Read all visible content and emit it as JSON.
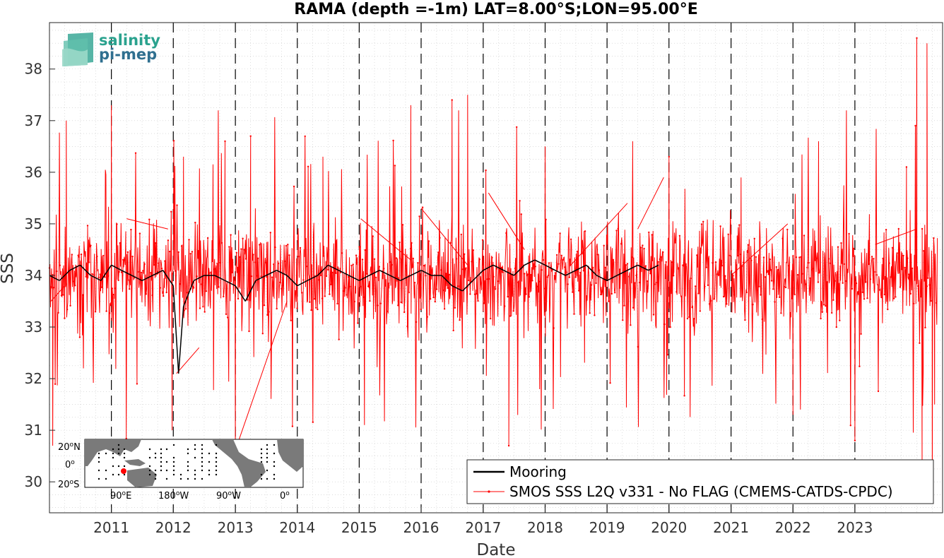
{
  "chart_data": {
    "type": "line",
    "title": "RAMA (depth =-1m) LAT=8.00°S;LON=95.00°E",
    "xlabel": "Date",
    "ylabel": "SSS",
    "xlim": [
      "2010-01-01",
      "2024-06-01"
    ],
    "ylim": [
      29.4,
      38.9
    ],
    "yticks": [
      30,
      31,
      32,
      33,
      34,
      35,
      36,
      37,
      38
    ],
    "xticks": [
      "2011",
      "2012",
      "2013",
      "2014",
      "2015",
      "2016",
      "2017",
      "2018",
      "2019",
      "2020",
      "2021",
      "2022",
      "2023"
    ],
    "year_markers": [
      "2011-01-01",
      "2012-01-01",
      "2013-01-01",
      "2014-01-01",
      "2015-01-01",
      "2016-01-01",
      "2017-01-01",
      "2018-01-01",
      "2019-01-01",
      "2020-01-01",
      "2021-01-01",
      "2022-01-01",
      "2023-01-01"
    ],
    "grid": true,
    "legend_placement": "bottom-right",
    "series": [
      {
        "name": "Mooring",
        "color": "#000000",
        "note_visible_segments": true,
        "values": [
          [
            "2010-01-01",
            34.0
          ],
          [
            "2010-03-01",
            33.9
          ],
          [
            "2010-05-01",
            34.1
          ],
          [
            "2010-07-01",
            34.2
          ],
          [
            "2010-09-01",
            34.0
          ],
          [
            "2010-11-01",
            33.9
          ],
          [
            "2011-01-01",
            34.2
          ],
          [
            "2011-03-01",
            34.1
          ],
          [
            "2011-05-01",
            34.0
          ],
          [
            "2011-07-01",
            33.9
          ],
          [
            "2011-09-01",
            34.0
          ],
          [
            "2011-11-01",
            34.1
          ],
          [
            "2012-01-01",
            33.8
          ],
          [
            "2012-02-01",
            32.1
          ],
          [
            "2012-03-01",
            33.4
          ],
          [
            "2012-05-01",
            33.9
          ],
          [
            "2012-07-01",
            34.0
          ],
          [
            "2012-09-01",
            34.0
          ],
          [
            "2012-11-01",
            33.9
          ],
          [
            "2013-01-01",
            33.8
          ],
          [
            "2013-03-01",
            33.5
          ],
          [
            "2013-05-01",
            33.9
          ],
          [
            "2013-07-01",
            34.0
          ],
          [
            "2013-09-01",
            34.1
          ],
          [
            "2013-11-01",
            34.0
          ],
          [
            "2014-01-01",
            33.8
          ],
          [
            "2014-03-01",
            33.9
          ],
          [
            "2014-05-01",
            34.0
          ],
          [
            "2014-07-01",
            34.2
          ],
          [
            "2014-09-01",
            34.1
          ],
          [
            "2014-11-01",
            34.0
          ],
          [
            "2015-01-01",
            33.9
          ],
          [
            "2015-03-01",
            34.0
          ],
          [
            "2015-05-01",
            34.1
          ],
          [
            "2015-07-01",
            34.0
          ],
          [
            "2015-09-01",
            33.9
          ],
          [
            "2015-11-01",
            34.0
          ],
          [
            "2016-01-01",
            34.1
          ],
          [
            "2016-03-01",
            34.0
          ],
          [
            "2016-05-01",
            34.0
          ],
          [
            "2016-07-01",
            33.8
          ],
          [
            "2016-09-01",
            33.7
          ],
          [
            "2016-11-01",
            33.9
          ],
          [
            "2017-01-01",
            34.1
          ],
          [
            "2017-03-01",
            34.2
          ],
          [
            "2017-05-01",
            34.1
          ],
          [
            "2017-07-01",
            34.0
          ],
          [
            "2017-09-01",
            34.2
          ],
          [
            "2017-11-01",
            34.3
          ],
          [
            "2018-01-01",
            34.2
          ],
          [
            "2018-03-01",
            34.1
          ],
          [
            "2018-05-01",
            34.0
          ],
          [
            "2018-07-01",
            34.1
          ],
          [
            "2018-09-01",
            34.2
          ],
          [
            "2018-11-01",
            34.0
          ],
          [
            "2019-01-01",
            33.9
          ],
          [
            "2019-03-01",
            34.0
          ],
          [
            "2019-05-01",
            34.1
          ],
          [
            "2019-07-01",
            34.2
          ],
          [
            "2019-09-01",
            34.1
          ],
          [
            "2019-11-01",
            34.2
          ]
        ]
      },
      {
        "name": "SMOS SSS L2Q v331 - No FLAG  (CMEMS-CATDS-CPDC)",
        "color": "#ff0000",
        "start": "2010-01-01",
        "end": "2024-05-01",
        "mean": 34.0,
        "spread": 0.9,
        "spikes": [
          [
            "2010-01-20",
            30.7
          ],
          [
            "2010-04-10",
            37.0
          ],
          [
            "2011-01-01",
            37.3
          ],
          [
            "2011-06-01",
            31.9
          ],
          [
            "2011-12-25",
            31.0
          ],
          [
            "2012-03-01",
            36.3
          ],
          [
            "2012-11-01",
            36.6
          ],
          [
            "2013-01-01",
            30.6
          ],
          [
            "2013-04-01",
            36.7
          ],
          [
            "2014-06-01",
            36.3
          ],
          [
            "2015-02-01",
            31.1
          ],
          [
            "2015-11-01",
            37.3
          ],
          [
            "2016-07-01",
            37.4
          ],
          [
            "2016-10-01",
            37.5
          ],
          [
            "2017-06-01",
            30.7
          ],
          [
            "2018-01-01",
            36.5
          ],
          [
            "2019-06-01",
            36.6
          ],
          [
            "2020-01-01",
            36.3
          ],
          [
            "2021-03-01",
            35.9
          ],
          [
            "2022-01-01",
            31.3
          ],
          [
            "2022-06-01",
            36.6
          ],
          [
            "2023-01-01",
            30.8
          ],
          [
            "2023-11-01",
            36.1
          ],
          [
            "2024-01-01",
            38.6
          ],
          [
            "2024-02-01",
            30.3
          ],
          [
            "2024-03-01",
            38.5
          ],
          [
            "2024-04-01",
            29.8
          ],
          [
            "2024-04-15",
            31.5
          ]
        ],
        "gap_links": [
          [
            [
              "2010-01-10",
              33.5
            ],
            [
              "2010-04-01",
              33.8
            ]
          ],
          [
            [
              "2011-04-01",
              35.1
            ],
            [
              "2011-12-01",
              34.9
            ]
          ],
          [
            [
              "2012-01-20",
              32.1
            ],
            [
              "2012-06-01",
              32.6
            ]
          ],
          [
            [
              "2013-01-10",
              30.7
            ],
            [
              "2013-11-01",
              33.5
            ]
          ],
          [
            [
              "2015-01-10",
              35.1
            ],
            [
              "2015-11-01",
              34.3
            ]
          ],
          [
            [
              "2016-01-01",
              35.3
            ],
            [
              "2016-10-01",
              34.2
            ]
          ],
          [
            [
              "2017-02-01",
              35.6
            ],
            [
              "2017-09-01",
              34.5
            ]
          ],
          [
            [
              "2018-06-01",
              34.2
            ],
            [
              "2019-05-01",
              35.4
            ]
          ],
          [
            [
              "2019-07-01",
              34.9
            ],
            [
              "2019-12-01",
              35.9
            ]
          ],
          [
            [
              "2021-01-01",
              34.0
            ],
            [
              "2021-12-01",
              35.0
            ]
          ],
          [
            [
              "2023-05-01",
              34.6
            ],
            [
              "2024-01-01",
              34.9
            ]
          ]
        ]
      }
    ]
  },
  "logo": {
    "line1": "salinity",
    "line2": "pi-mep"
  },
  "inset_map": {
    "lat_labels": [
      "20",
      "N",
      "0",
      "",
      "20",
      "S"
    ],
    "lon_labels": [
      "90",
      "E",
      "180",
      "W",
      "90",
      "W",
      "0",
      ""
    ],
    "station": "red dot"
  }
}
